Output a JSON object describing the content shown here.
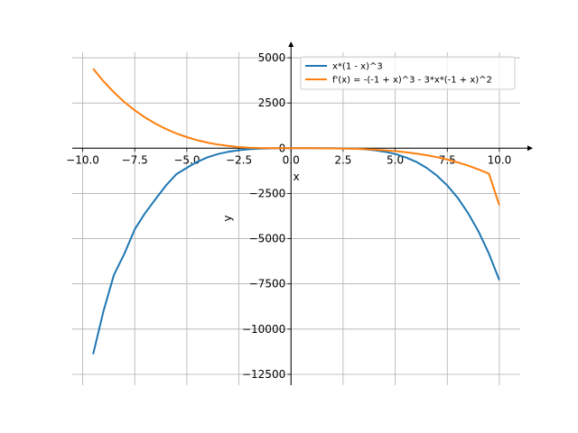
{
  "chart_data": {
    "type": "line",
    "xlabel": "x",
    "ylabel": "y",
    "xlim": [
      -10.5,
      11.0
    ],
    "ylim": [
      -13100,
      5800
    ],
    "grid": true,
    "legend_position": "top-right",
    "x_ticks": [
      -10.0,
      -7.5,
      -5.0,
      -2.5,
      0.0,
      2.5,
      5.0,
      7.5,
      10.0
    ],
    "x_tick_labels": [
      "−10.0",
      "−7.5",
      "−5.0",
      "−2.5",
      "0.0",
      "2.5",
      "5.0",
      "7.5",
      "10.0"
    ],
    "y_ticks": [
      5000,
      2500,
      0,
      -2500,
      -5000,
      -7500,
      -10000,
      -12500
    ],
    "y_tick_labels": [
      "5000",
      "2500",
      "0",
      "−2500",
      "−5000",
      "−7500",
      "−10000",
      "−12500"
    ],
    "x": [
      -9.5,
      -9.0,
      -8.5,
      -8.0,
      -7.5,
      -7.0,
      -6.5,
      -6.0,
      -5.5,
      -5.0,
      -4.5,
      -4.0,
      -3.5,
      -3.0,
      -2.5,
      -2.0,
      -1.5,
      -1.0,
      -0.5,
      0.0,
      0.5,
      1.0,
      1.5,
      2.0,
      2.5,
      3.0,
      3.5,
      4.0,
      4.5,
      5.0,
      5.5,
      6.0,
      6.5,
      7.0,
      7.5,
      8.0,
      8.5,
      9.0,
      9.5,
      10.0
    ],
    "series": [
      {
        "name": "x*(1 - x)^3",
        "color": "#1f77b4",
        "values": [
          -11392,
          -9000,
          -7007,
          -5832,
          -4481,
          -3584,
          -2807,
          -2058,
          -1435,
          -1080,
          -751,
          -500,
          -319,
          -192,
          -107,
          -54,
          -23,
          -8,
          -2,
          0,
          0,
          0,
          -1,
          -2,
          -8,
          -24,
          -55,
          -108,
          -193,
          -320,
          -501,
          -750,
          -1082,
          -1512,
          -2058,
          -2744,
          -3590,
          -4608,
          -5831,
          -7290
        ]
      },
      {
        "name": "f'(x) = -(-1 + x)^3 - 3*x*(-1 + x)^2",
        "color": "#ff7f0e",
        "values": [
          4400,
          3700,
          3090,
          2556,
          2095,
          1696,
          1356,
          1063,
          820,
          612,
          445,
          309,
          202,
          124,
          67,
          31,
          9,
          0,
          -1,
          1,
          0,
          -1,
          -4,
          -9,
          -18,
          -32,
          -51,
          -78,
          -114,
          -161,
          -220,
          -294,
          -385,
          -495,
          -626,
          -781,
          -961,
          -1170,
          -1410,
          -3150
        ]
      }
    ]
  }
}
